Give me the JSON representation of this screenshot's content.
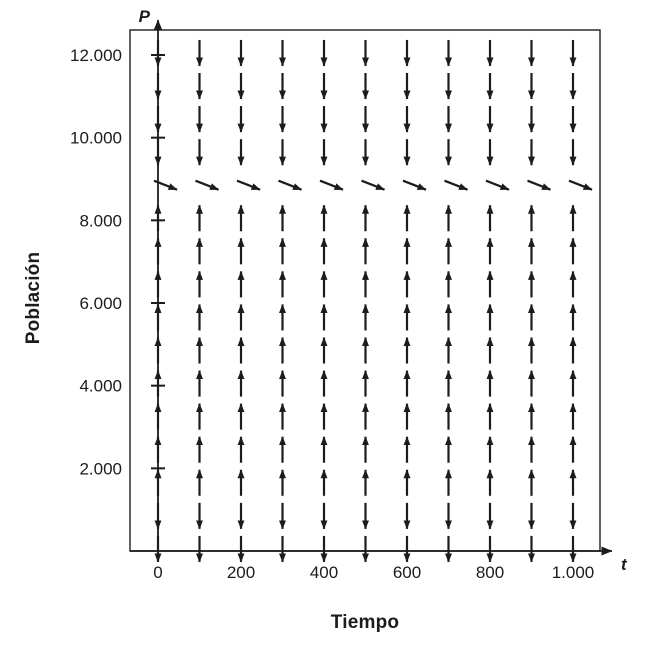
{
  "figure": {
    "background": "#ffffff",
    "ink_color": "#1c1c1c"
  },
  "chart_data": {
    "type": "direction_field",
    "xlabel": "Tiempo",
    "ylabel": "Población",
    "x_axis_symbol": "t",
    "y_axis_symbol": "P",
    "xlim": [
      -70,
      1100
    ],
    "ylim": [
      0,
      12600
    ],
    "grid": false,
    "x_ticks": [
      {
        "value": 0,
        "label": "0"
      },
      {
        "value": 200,
        "label": "200"
      },
      {
        "value": 400,
        "label": "400"
      },
      {
        "value": 600,
        "label": "600"
      },
      {
        "value": 800,
        "label": "800"
      },
      {
        "value": 1000,
        "label": "1.000"
      }
    ],
    "y_ticks": [
      {
        "value": 2000,
        "label": "2.000"
      },
      {
        "value": 4000,
        "label": "4.000"
      },
      {
        "value": 6000,
        "label": "6.000"
      },
      {
        "value": 8000,
        "label": "8.000"
      },
      {
        "value": 10000,
        "label": "10.000"
      },
      {
        "value": 12000,
        "label": "12.000"
      }
    ],
    "field": {
      "t_columns": [
        0,
        100,
        200,
        300,
        400,
        500,
        600,
        700,
        800,
        900,
        1000
      ],
      "rows": [
        {
          "p": 12050,
          "direction": "down"
        },
        {
          "p": 11250,
          "direction": "down"
        },
        {
          "p": 10450,
          "direction": "down"
        },
        {
          "p": 9650,
          "direction": "down"
        },
        {
          "p": 8850,
          "direction": "down-right"
        },
        {
          "p": 8050,
          "direction": "up"
        },
        {
          "p": 7250,
          "direction": "up"
        },
        {
          "p": 6450,
          "direction": "up"
        },
        {
          "p": 5650,
          "direction": "up"
        },
        {
          "p": 4850,
          "direction": "up"
        },
        {
          "p": 4050,
          "direction": "up"
        },
        {
          "p": 3250,
          "direction": "up"
        },
        {
          "p": 2450,
          "direction": "up"
        },
        {
          "p": 1650,
          "direction": "up"
        },
        {
          "p": 850,
          "direction": "down"
        },
        {
          "p": 50,
          "direction": "down"
        }
      ]
    }
  }
}
